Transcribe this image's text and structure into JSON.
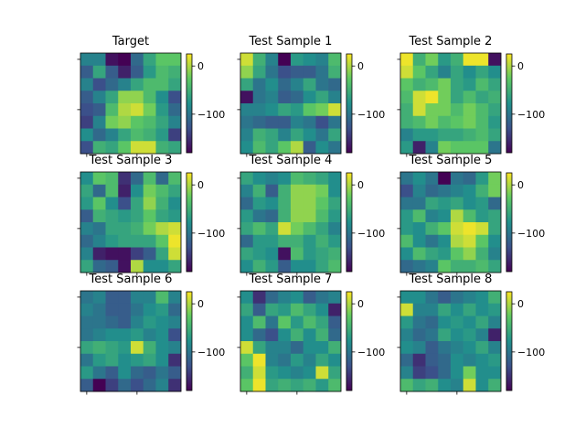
{
  "figure": {
    "background": "#ffffff"
  },
  "chart_data": {
    "type": "heatmap",
    "grid": false,
    "colormap": "viridis",
    "colormap_stops": [
      "#440154",
      "#3b528b",
      "#21918c",
      "#5ec962",
      "#fde725"
    ],
    "vmin": -180,
    "vmax": 25,
    "colorbar_ticks": [
      {
        "value": 0,
        "label": "0"
      },
      {
        "value": -100,
        "label": "−100"
      }
    ],
    "panels": [
      {
        "title": "Target",
        "matrix": [
          [
            -90,
            -90,
            -170,
            -180,
            -110,
            -60,
            -30,
            -30
          ],
          [
            -120,
            -60,
            -120,
            -160,
            -120,
            -70,
            -40,
            -50
          ],
          [
            -90,
            -130,
            -110,
            -90,
            -60,
            -40,
            -40,
            -60
          ],
          [
            -120,
            -90,
            -60,
            -10,
            -10,
            -40,
            -80,
            -130
          ],
          [
            -130,
            -120,
            -40,
            0,
            10,
            -20,
            -70,
            -110
          ],
          [
            -140,
            -90,
            -20,
            -10,
            -30,
            -40,
            -60,
            -90
          ],
          [
            -80,
            -110,
            -90,
            -60,
            -40,
            -50,
            -70,
            -140
          ],
          [
            -130,
            -50,
            -60,
            -30,
            10,
            10,
            -50,
            -60
          ]
        ]
      },
      {
        "title": "Test Sample 1",
        "matrix": [
          [
            10,
            -50,
            -90,
            -180,
            -70,
            -80,
            -90,
            -40
          ],
          [
            -10,
            -60,
            -100,
            -130,
            -120,
            -120,
            -100,
            -50
          ],
          [
            -60,
            -100,
            -80,
            -110,
            -90,
            -60,
            -100,
            -110
          ],
          [
            -170,
            -100,
            -90,
            -120,
            -110,
            -80,
            -60,
            -90
          ],
          [
            -90,
            -90,
            -80,
            -60,
            -70,
            -30,
            -20,
            10
          ],
          [
            -100,
            -110,
            -120,
            -120,
            -90,
            -100,
            -130,
            -100
          ],
          [
            -90,
            -50,
            -60,
            -90,
            -60,
            -80,
            -100,
            -60
          ],
          [
            -80,
            -40,
            -60,
            -30,
            0,
            -120,
            -80,
            -100
          ]
        ]
      },
      {
        "title": "Test Sample 2",
        "matrix": [
          [
            20,
            -50,
            -20,
            -70,
            -50,
            20,
            20,
            -170
          ],
          [
            10,
            -30,
            -60,
            -90,
            -60,
            -80,
            -60,
            -80
          ],
          [
            -30,
            -50,
            -40,
            -20,
            -60,
            -70,
            -40,
            -60
          ],
          [
            -40,
            10,
            20,
            -20,
            -60,
            -40,
            -60,
            -50
          ],
          [
            -50,
            10,
            -20,
            -20,
            -40,
            -20,
            -40,
            -60
          ],
          [
            -50,
            -40,
            -20,
            -40,
            -30,
            -20,
            -40,
            -70
          ],
          [
            -90,
            -70,
            -70,
            -60,
            -60,
            -50,
            -40,
            -60
          ],
          [
            -70,
            -160,
            -90,
            -20,
            -30,
            -30,
            -30,
            -100
          ]
        ]
      },
      {
        "title": "Test Sample 3",
        "matrix": [
          [
            -80,
            -30,
            -40,
            -150,
            -110,
            -40,
            -110,
            -40
          ],
          [
            -60,
            -110,
            -40,
            -160,
            -80,
            -20,
            -40,
            -60
          ],
          [
            -70,
            -30,
            -80,
            -130,
            -60,
            -10,
            -50,
            -80
          ],
          [
            -120,
            -50,
            -60,
            -70,
            -60,
            -30,
            -60,
            -70
          ],
          [
            -90,
            -100,
            -60,
            -60,
            -50,
            -20,
            0,
            10
          ],
          [
            -110,
            -90,
            -70,
            -60,
            -60,
            -60,
            -30,
            20
          ],
          [
            -90,
            -160,
            -170,
            -170,
            -140,
            -120,
            -60,
            10
          ],
          [
            -60,
            -110,
            -120,
            -170,
            0,
            -80,
            -80,
            -60
          ]
        ]
      },
      {
        "title": "Test Sample 4",
        "matrix": [
          [
            -60,
            -80,
            -90,
            -80,
            -40,
            -50,
            -60,
            -80
          ],
          [
            -90,
            -50,
            -120,
            -50,
            -10,
            -10,
            -20,
            -80
          ],
          [
            -110,
            -70,
            -80,
            -50,
            -10,
            -10,
            -30,
            -60
          ],
          [
            -70,
            -100,
            -110,
            -50,
            -10,
            -10,
            -40,
            -70
          ],
          [
            -60,
            -40,
            -60,
            10,
            -20,
            -40,
            -60,
            -90
          ],
          [
            -110,
            -70,
            -70,
            -50,
            -50,
            -70,
            -50,
            -70
          ],
          [
            -60,
            -70,
            -80,
            -170,
            -40,
            -70,
            -60,
            -50
          ],
          [
            -80,
            -50,
            -70,
            -120,
            -80,
            -80,
            -60,
            -40
          ]
        ]
      },
      {
        "title": "Test Sample 5",
        "matrix": [
          [
            -100,
            -80,
            -100,
            -180,
            -100,
            -110,
            -70,
            -20
          ],
          [
            -130,
            -90,
            -110,
            -100,
            -90,
            -80,
            -50,
            -20
          ],
          [
            -100,
            -100,
            -60,
            -70,
            -60,
            -80,
            -70,
            -110
          ],
          [
            -70,
            -40,
            -90,
            -80,
            0,
            -40,
            -70,
            -60
          ],
          [
            -70,
            -80,
            -50,
            -30,
            10,
            20,
            10,
            -60
          ],
          [
            -40,
            -80,
            -100,
            -80,
            0,
            10,
            -30,
            -80
          ],
          [
            -80,
            -40,
            -60,
            -70,
            -30,
            -10,
            -50,
            -90
          ],
          [
            -110,
            -100,
            -90,
            -30,
            -50,
            -50,
            -40,
            -60
          ]
        ]
      },
      {
        "title": "Test Sample 6",
        "matrix": [
          [
            -100,
            -90,
            -120,
            -120,
            -90,
            -90,
            -40,
            -90
          ],
          [
            -90,
            -100,
            -120,
            -120,
            -100,
            -80,
            -70,
            -110
          ],
          [
            -100,
            -100,
            -110,
            -120,
            -90,
            -70,
            -80,
            -90
          ],
          [
            -100,
            -90,
            -80,
            -80,
            -70,
            -90,
            -80,
            -130
          ],
          [
            -60,
            -50,
            -60,
            -70,
            10,
            -50,
            -80,
            -90
          ],
          [
            -100,
            -70,
            -60,
            -80,
            -70,
            -60,
            -80,
            -150
          ],
          [
            -70,
            -100,
            -120,
            -80,
            -110,
            -120,
            -100,
            -120
          ],
          [
            -120,
            -180,
            -140,
            -110,
            -130,
            -110,
            -90,
            -150
          ]
        ]
      },
      {
        "title": "Test Sample 7",
        "matrix": [
          [
            -80,
            -150,
            -110,
            -90,
            -80,
            -120,
            -100,
            -90
          ],
          [
            -60,
            -120,
            -60,
            -70,
            -40,
            -60,
            -80,
            -160
          ],
          [
            -80,
            -40,
            -100,
            -30,
            -70,
            -40,
            -60,
            -120
          ],
          [
            -80,
            -110,
            -130,
            -80,
            -50,
            -80,
            -50,
            -110
          ],
          [
            10,
            -60,
            -90,
            -90,
            -110,
            -80,
            -80,
            -50
          ],
          [
            -30,
            20,
            -90,
            -100,
            -70,
            -90,
            -60,
            -80
          ],
          [
            -50,
            10,
            -70,
            -80,
            -90,
            -80,
            10,
            -60
          ],
          [
            -30,
            20,
            -60,
            -50,
            -60,
            -50,
            -70,
            -40
          ]
        ]
      },
      {
        "title": "Test Sample 8",
        "matrix": [
          [
            -80,
            -80,
            -100,
            -120,
            -100,
            -90,
            -80,
            -50
          ],
          [
            10,
            -90,
            -90,
            -60,
            -80,
            -60,
            -80,
            -70
          ],
          [
            -70,
            -100,
            -110,
            -80,
            -70,
            -80,
            -60,
            -90
          ],
          [
            -90,
            -110,
            -100,
            -60,
            -80,
            -70,
            -90,
            -160
          ],
          [
            -80,
            -90,
            -120,
            -100,
            -90,
            -80,
            -60,
            -90
          ],
          [
            -110,
            -150,
            -120,
            -110,
            -80,
            -90,
            -80,
            -70
          ],
          [
            -90,
            -140,
            -130,
            -110,
            -80,
            -20,
            -80,
            -80
          ],
          [
            -40,
            -60,
            -50,
            -80,
            -90,
            10,
            -80,
            -50
          ]
        ]
      }
    ]
  }
}
